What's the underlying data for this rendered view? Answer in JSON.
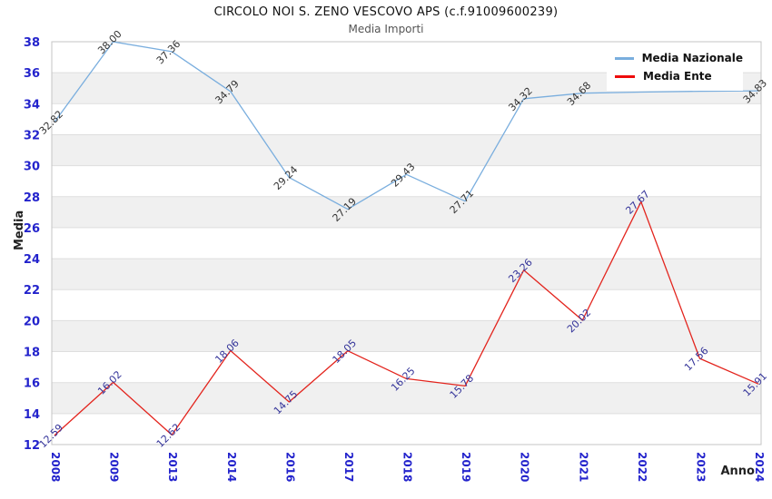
{
  "title": "CIRCOLO NOI S. ZENO VESCOVO APS (c.f.91009600239)",
  "subtitle": "Media Importi",
  "axes": {
    "y_title": "Media",
    "x_title": "Anno",
    "y_ticks": [
      12,
      14,
      16,
      18,
      20,
      22,
      24,
      26,
      28,
      30,
      32,
      34,
      36,
      38
    ],
    "ylim": [
      12,
      38
    ]
  },
  "legend": {
    "position": "top-right",
    "items": [
      {
        "label": "Media Nazionale",
        "color": "#79aede"
      },
      {
        "label": "Media Ente",
        "color": "#ee0c0c"
      }
    ]
  },
  "colors": {
    "national_line": "#7aaede",
    "ente_line": "#e3241d",
    "axis_tick_label": "#2323cc",
    "national_value_label": "#333333",
    "ente_value_label": "#333399",
    "band_gray": "#f0f0f0",
    "grid_line": "#dedede",
    "plot_border": "#c4c4c4",
    "background": "#ffffff"
  },
  "chart_data": {
    "type": "line",
    "title": "CIRCOLO NOI S. ZENO VESCOVO APS (c.f.91009600239)",
    "subtitle": "Media Importi",
    "xlabel": "Anno",
    "ylabel": "Media",
    "ylim": [
      12,
      38
    ],
    "grid": "horizontal-bands-every-2-units",
    "legend_position": "top-right",
    "categories": [
      "2008",
      "2009",
      "2013",
      "2014",
      "2016",
      "2017",
      "2018",
      "2019",
      "2020",
      "2021",
      "2022",
      "2023",
      "2024"
    ],
    "series": [
      {
        "name": "Media Nazionale",
        "color": "#7aaede",
        "values": [
          32.82,
          38.0,
          37.36,
          34.79,
          29.24,
          27.19,
          29.43,
          27.71,
          34.32,
          34.68,
          34.75,
          34.8,
          34.83
        ],
        "point_labels": [
          "32.82",
          "38.00",
          "37.36",
          "34.79",
          "29.24",
          "27.19",
          "29.43",
          "27.71",
          "34.32",
          "34.68",
          null,
          null,
          "34.83"
        ]
      },
      {
        "name": "Media Ente",
        "color": "#e3241d",
        "values": [
          12.59,
          16.02,
          12.62,
          18.06,
          14.75,
          18.05,
          16.25,
          15.78,
          23.26,
          20.02,
          27.67,
          17.56,
          15.91
        ],
        "point_labels": [
          "12.59",
          "16.02",
          "12.62",
          "18.06",
          "14.75",
          "18.05",
          "16.25",
          "15.78",
          "23.26",
          "20.02",
          "27.67",
          "17.56",
          "15.91"
        ]
      }
    ]
  }
}
